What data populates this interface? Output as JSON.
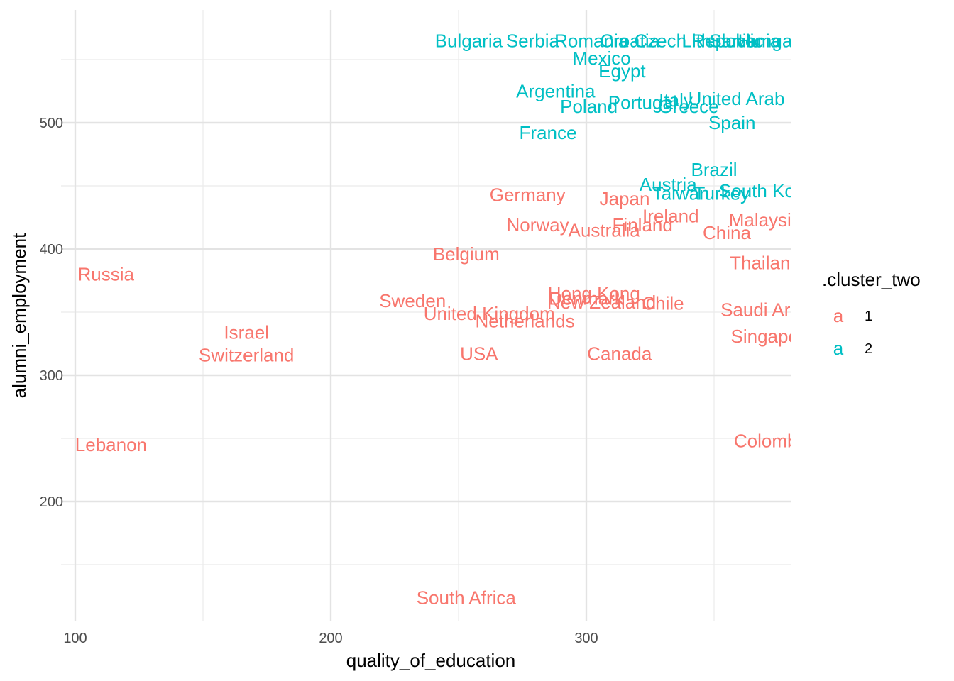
{
  "chart_data": {
    "type": "scatter",
    "title": "",
    "xlabel": "quality_of_education",
    "ylabel": "alumni_employment",
    "xlim": [
      100,
      380
    ],
    "ylim": [
      108,
      565
    ],
    "x_ticks": [
      100,
      200,
      300
    ],
    "y_ticks": [
      200,
      300,
      400,
      500
    ],
    "grid": true,
    "legend": {
      "title": ".cluster_two",
      "position": "right",
      "key_glyph": "a",
      "entries": [
        {
          "label": "1",
          "color": "#F8766D"
        },
        {
          "label": "2",
          "color": "#00BFC4"
        }
      ]
    },
    "series": [
      {
        "name": "1",
        "color": "#F8766D",
        "points": [
          {
            "label": "Russia",
            "x": 112,
            "y": 380
          },
          {
            "label": "Lebanon",
            "x": 114,
            "y": 245
          },
          {
            "label": "Israel",
            "x": 167,
            "y": 334
          },
          {
            "label": "Switzerland",
            "x": 167,
            "y": 316
          },
          {
            "label": "South Africa",
            "x": 253,
            "y": 124
          },
          {
            "label": "Germany",
            "x": 277,
            "y": 443
          },
          {
            "label": "Norway",
            "x": 281,
            "y": 419
          },
          {
            "label": "Australia",
            "x": 307,
            "y": 415
          },
          {
            "label": "Belgium",
            "x": 253,
            "y": 396
          },
          {
            "label": "Sweden",
            "x": 232,
            "y": 359
          },
          {
            "label": "United Kingdom",
            "x": 262,
            "y": 349
          },
          {
            "label": "Netherlands",
            "x": 276,
            "y": 343
          },
          {
            "label": "USA",
            "x": 258,
            "y": 317
          },
          {
            "label": "Canada",
            "x": 313,
            "y": 317
          },
          {
            "label": "Hong Kong",
            "x": 303,
            "y": 365
          },
          {
            "label": "Denmark",
            "x": 300,
            "y": 361
          },
          {
            "label": "New Zealand",
            "x": 306,
            "y": 358
          },
          {
            "label": "Chile",
            "x": 330,
            "y": 357
          },
          {
            "label": "Japan",
            "x": 315,
            "y": 440
          },
          {
            "label": "Finland",
            "x": 322,
            "y": 419
          },
          {
            "label": "Ireland",
            "x": 333,
            "y": 426
          },
          {
            "label": "China",
            "x": 355,
            "y": 413
          },
          {
            "label": "Malaysia",
            "x": 370,
            "y": 423
          },
          {
            "label": "Thailand",
            "x": 370,
            "y": 389
          },
          {
            "label": "Saudi Arabia",
            "x": 373,
            "y": 352
          },
          {
            "label": "Singapore",
            "x": 373,
            "y": 331
          },
          {
            "label": "Colombia",
            "x": 373,
            "y": 248
          }
        ]
      },
      {
        "name": "2",
        "color": "#00BFC4",
        "points": [
          {
            "label": "Bulgaria",
            "x": 254,
            "y": 565
          },
          {
            "label": "Serbia",
            "x": 279,
            "y": 565
          },
          {
            "label": "Romania",
            "x": 302,
            "y": 565
          },
          {
            "label": "Croatia",
            "x": 317,
            "y": 565
          },
          {
            "label": "Czech Republic",
            "x": 344,
            "y": 565
          },
          {
            "label": "Lithuania",
            "x": 352,
            "y": 565
          },
          {
            "label": "Slovenia",
            "x": 362,
            "y": 565
          },
          {
            "label": "Hungary",
            "x": 373,
            "y": 565
          },
          {
            "label": "Mexico",
            "x": 306,
            "y": 551
          },
          {
            "label": "Egypt",
            "x": 314,
            "y": 541
          },
          {
            "label": "Argentina",
            "x": 288,
            "y": 525
          },
          {
            "label": "Poland",
            "x": 301,
            "y": 513
          },
          {
            "label": "Portugal",
            "x": 322,
            "y": 516
          },
          {
            "label": "Italy",
            "x": 335,
            "y": 518
          },
          {
            "label": "Greece",
            "x": 340,
            "y": 513
          },
          {
            "label": "United Arab Emirates",
            "x": 374,
            "y": 519
          },
          {
            "label": "France",
            "x": 285,
            "y": 492
          },
          {
            "label": "Spain",
            "x": 357,
            "y": 500
          },
          {
            "label": "Brazil",
            "x": 350,
            "y": 463
          },
          {
            "label": "Austria",
            "x": 332,
            "y": 451
          },
          {
            "label": "Taiwan",
            "x": 337,
            "y": 444
          },
          {
            "label": "Turkey",
            "x": 353,
            "y": 444
          },
          {
            "label": "South Korea",
            "x": 372,
            "y": 446
          }
        ]
      }
    ]
  }
}
